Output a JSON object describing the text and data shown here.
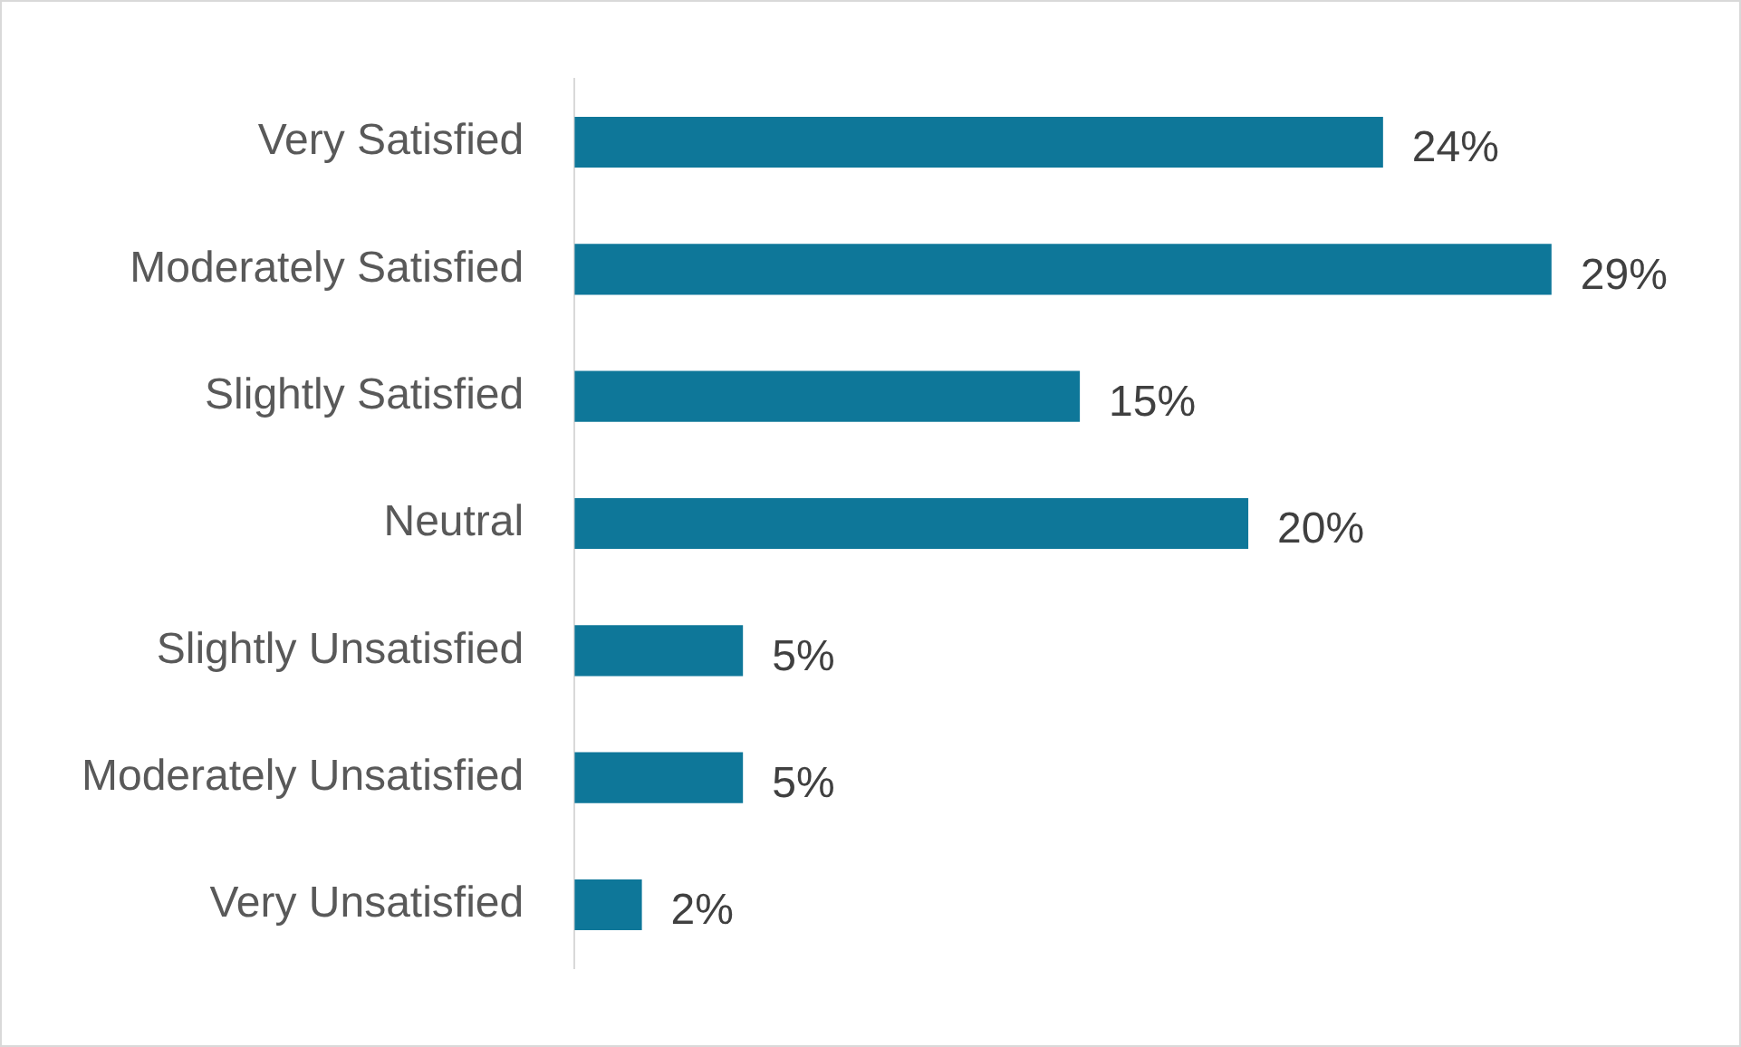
{
  "chart_data": {
    "type": "bar",
    "orientation": "horizontal",
    "categories": [
      "Very Satisfied",
      "Moderately Satisfied",
      "Slightly Satisfied",
      "Neutral",
      "Slightly Unsatisfied",
      "Moderately Unsatisfied",
      "Very Unsatisfied"
    ],
    "values": [
      24,
      29,
      15,
      20,
      5,
      5,
      2
    ],
    "value_labels": [
      "24%",
      "29%",
      "15%",
      "20%",
      "5%",
      "5%",
      "2%"
    ],
    "color": "#0e7799",
    "legend": false
  }
}
